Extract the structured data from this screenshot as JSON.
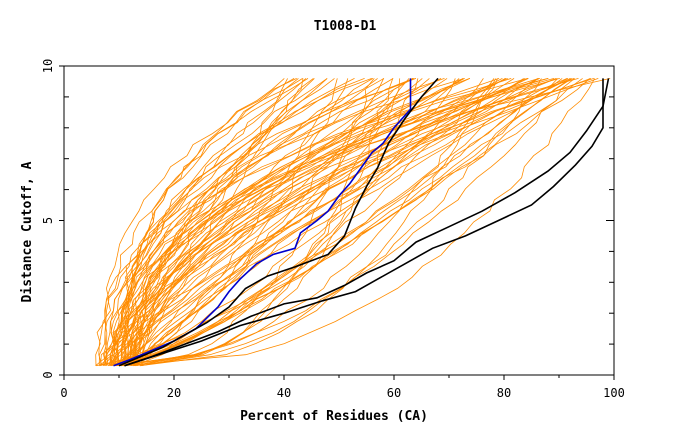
{
  "chart_data": {
    "type": "line",
    "title": "T1008-D1",
    "xlabel": "Percent of Residues (CA)",
    "ylabel": "Distance Cutoff, A",
    "xlim": [
      0,
      100
    ],
    "ylim": [
      0,
      10
    ],
    "x_ticks": [
      0,
      20,
      40,
      60,
      80,
      100
    ],
    "y_ticks": [
      0,
      5,
      10
    ],
    "x_tick_labels": [
      "0",
      "20",
      "40",
      "60",
      "80",
      "100"
    ],
    "y_tick_labels": [
      "0",
      "5",
      "10"
    ],
    "grid": false,
    "legend": "none",
    "colors": {
      "background_models": "#ff8c00",
      "highlight": "#0000cc",
      "reference": "#000000",
      "frame": "#000000"
    },
    "background_model_count": 90,
    "series": [
      {
        "color": "#0000cc",
        "points": [
          [
            9,
            0.3
          ],
          [
            12,
            0.5
          ],
          [
            16,
            0.8
          ],
          [
            20,
            1.1
          ],
          [
            24,
            1.5
          ],
          [
            28,
            2.2
          ],
          [
            30,
            2.7
          ],
          [
            32,
            3.1
          ],
          [
            35,
            3.6
          ],
          [
            38,
            3.9
          ],
          [
            42,
            4.1
          ],
          [
            43,
            4.6
          ],
          [
            46,
            5.0
          ],
          [
            48,
            5.3
          ],
          [
            50,
            5.8
          ],
          [
            52,
            6.2
          ],
          [
            54,
            6.7
          ],
          [
            56,
            7.2
          ],
          [
            58,
            7.5
          ],
          [
            60,
            8.0
          ],
          [
            63,
            8.6
          ],
          [
            63,
            9.6
          ]
        ]
      },
      {
        "color": "#000000",
        "points": [
          [
            10,
            0.3
          ],
          [
            14,
            0.6
          ],
          [
            18,
            0.9
          ],
          [
            22,
            1.3
          ],
          [
            26,
            1.7
          ],
          [
            30,
            2.2
          ],
          [
            33,
            2.8
          ],
          [
            37,
            3.2
          ],
          [
            42,
            3.5
          ],
          [
            48,
            3.9
          ],
          [
            51,
            4.5
          ],
          [
            53,
            5.4
          ],
          [
            55,
            6.1
          ],
          [
            57,
            6.7
          ],
          [
            59,
            7.5
          ],
          [
            62,
            8.3
          ],
          [
            65,
            9.0
          ],
          [
            68,
            9.6
          ]
        ]
      },
      {
        "color": "#000000",
        "points": [
          [
            11,
            0.3
          ],
          [
            16,
            0.6
          ],
          [
            22,
            1.0
          ],
          [
            28,
            1.4
          ],
          [
            34,
            1.9
          ],
          [
            40,
            2.3
          ],
          [
            46,
            2.5
          ],
          [
            51,
            2.9
          ],
          [
            55,
            3.3
          ],
          [
            60,
            3.7
          ],
          [
            64,
            4.3
          ],
          [
            70,
            4.8
          ],
          [
            76,
            5.3
          ],
          [
            82,
            5.9
          ],
          [
            88,
            6.6
          ],
          [
            92,
            7.2
          ],
          [
            95,
            7.9
          ],
          [
            98,
            8.7
          ],
          [
            99,
            9.6
          ]
        ]
      },
      {
        "color": "#000000",
        "points": [
          [
            11,
            0.3
          ],
          [
            18,
            0.7
          ],
          [
            25,
            1.1
          ],
          [
            32,
            1.6
          ],
          [
            40,
            2.0
          ],
          [
            47,
            2.4
          ],
          [
            53,
            2.7
          ],
          [
            57,
            3.1
          ],
          [
            62,
            3.6
          ],
          [
            67,
            4.1
          ],
          [
            73,
            4.5
          ],
          [
            79,
            5.0
          ],
          [
            85,
            5.5
          ],
          [
            89,
            6.1
          ],
          [
            93,
            6.8
          ],
          [
            96,
            7.4
          ],
          [
            98,
            8.0
          ],
          [
            98,
            9.6
          ]
        ]
      }
    ]
  }
}
